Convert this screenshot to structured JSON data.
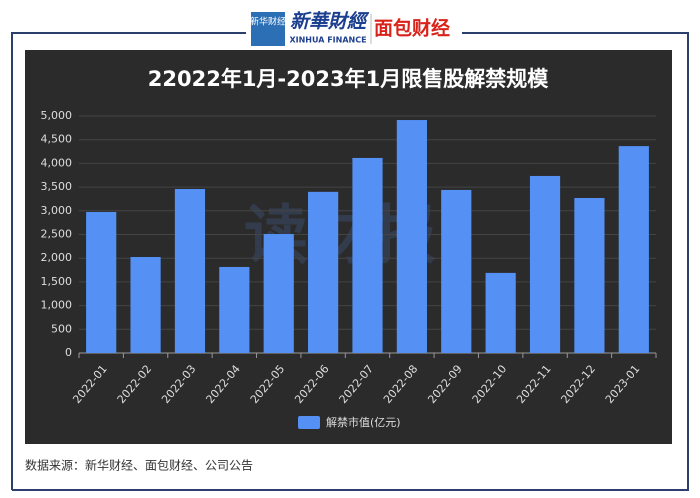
{
  "header": {
    "logo_left_badge": "新华财经",
    "logo_left": "新華財經",
    "logo_left_sub": "XINHUA FINANCE",
    "logo_right": "面包财经"
  },
  "chart_data": {
    "type": "bar",
    "title": "22022年1月-2023年1月限售股解禁规模",
    "categories": [
      "2022-01",
      "2022-02",
      "2022-03",
      "2022-04",
      "2022-05",
      "2022-06",
      "2022-07",
      "2022-08",
      "2022-09",
      "2022-10",
      "2022-11",
      "2022-12",
      "2023-01"
    ],
    "series": [
      {
        "name": "解禁市值(亿元)",
        "color": "#5590f5",
        "values": [
          2975,
          2025,
          3460,
          1815,
          2510,
          3400,
          4115,
          4915,
          3440,
          1690,
          3735,
          3270,
          4365
        ]
      }
    ],
    "ylim": [
      0,
      5000
    ],
    "yticks": [
      0,
      500,
      {
        "value": 1000,
        "label": "1,000"
      },
      {
        "value": 1500,
        "label": "1,500"
      },
      {
        "value": 2000,
        "label": "2,000"
      },
      {
        "value": 2500,
        "label": "2,500"
      },
      {
        "value": 3000,
        "label": "3,000"
      },
      {
        "value": 3500,
        "label": "3,500"
      },
      {
        "value": 4000,
        "label": "4,000"
      },
      {
        "value": 4500,
        "label": "4,500"
      },
      {
        "value": 5000,
        "label": "5,000"
      }
    ],
    "grid": true,
    "legend": "bottom",
    "watermark": "读财报"
  },
  "source": "数据来源：新华财经、面包财经、公司公告"
}
